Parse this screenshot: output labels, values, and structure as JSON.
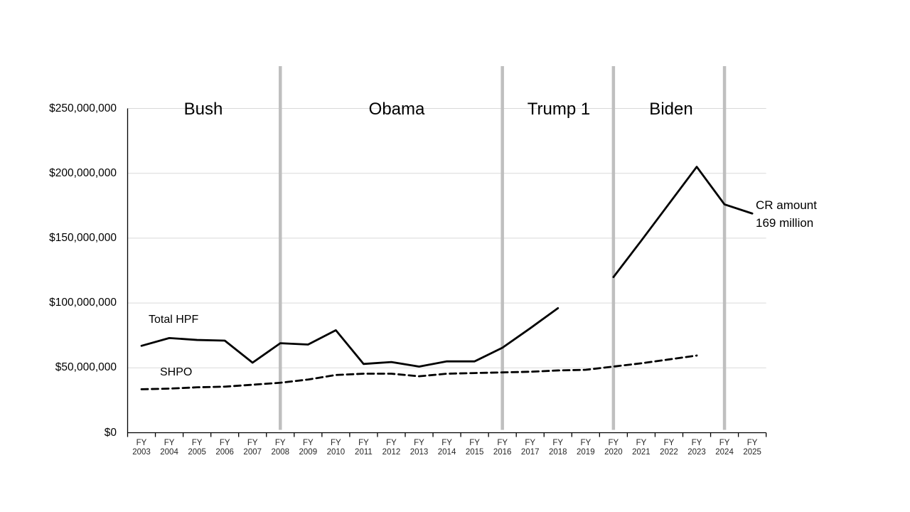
{
  "chart_data": {
    "type": "line",
    "values_unit": "USD millions",
    "ylim_millions": [
      0,
      250
    ],
    "grid": true,
    "legend_position": "inline-labels",
    "y_axis": {
      "tick_labels": [
        "$0",
        "$50,000,000",
        "$100,000,000",
        "$150,000,000",
        "$200,000,000",
        "$250,000,000"
      ],
      "tick_values_millions": [
        0,
        50,
        100,
        150,
        200,
        250
      ]
    },
    "x_axis": {
      "prefix": "FY",
      "years": [
        "2003",
        "2004",
        "2005",
        "2006",
        "2007",
        "2008",
        "2009",
        "2010",
        "2011",
        "2012",
        "2013",
        "2014",
        "2015",
        "2016",
        "2017",
        "2018",
        "2019",
        "2020",
        "2021",
        "2022",
        "2023",
        "2024",
        "2025"
      ]
    },
    "series": [
      {
        "name": "Total HPF",
        "style": "solid",
        "values": [
          67,
          73,
          71.5,
          71,
          54,
          69,
          68,
          79,
          53,
          54.5,
          51,
          55,
          55,
          65.5,
          80.5,
          96,
          null,
          120,
          148,
          176.5,
          205,
          176,
          169
        ]
      },
      {
        "name": "SHPO",
        "style": "dashed",
        "values": [
          33.5,
          34,
          35,
          35.5,
          37,
          38.5,
          41,
          44.5,
          45.5,
          45.5,
          43.5,
          45.5,
          46,
          46.5,
          47,
          48,
          48.5,
          51,
          53.5,
          56.5,
          59.5,
          null,
          null
        ]
      }
    ],
    "era_dividers_years": [
      2008,
      2016,
      2020,
      2024
    ],
    "era_labels": [
      {
        "text": "Bush"
      },
      {
        "text": "Obama"
      },
      {
        "text": "Trump 1"
      },
      {
        "text": "Biden"
      }
    ],
    "annotation": {
      "line1": "CR amount",
      "line2": "169 million"
    },
    "colors": {
      "line": "#000000",
      "gridline": "#d9d9d9",
      "divider": "#bfbfbf",
      "axis": "#000000",
      "text": "#000000"
    }
  }
}
